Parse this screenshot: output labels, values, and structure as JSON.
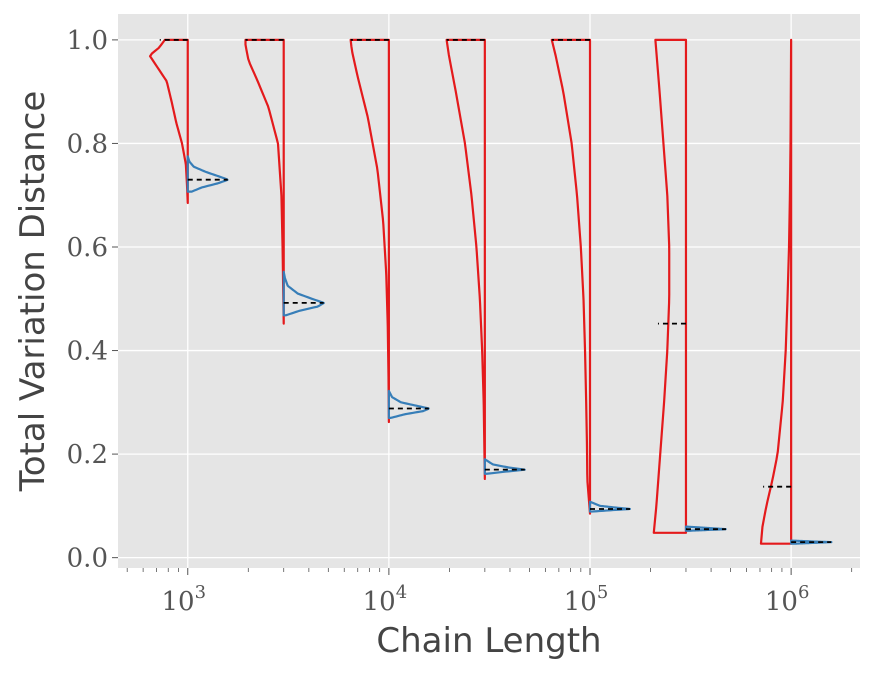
{
  "chart_data": {
    "type": "violin",
    "xlabel": "Chain Length",
    "ylabel": "Total Variation Distance",
    "xscale": "log",
    "xlim": [
      450,
      2200000
    ],
    "ylim": [
      -0.02,
      1.05
    ],
    "grid": true,
    "legend": "none",
    "x_ticks": [
      {
        "value": 1000,
        "base": "10",
        "exp": "3"
      },
      {
        "value": 10000,
        "base": "10",
        "exp": "4"
      },
      {
        "value": 100000,
        "base": "10",
        "exp": "5"
      },
      {
        "value": 1000000,
        "base": "10",
        "exp": "6"
      }
    ],
    "y_ticks": [
      {
        "value": 0.0,
        "label": "0.0"
      },
      {
        "value": 0.2,
        "label": "0.2"
      },
      {
        "value": 0.4,
        "label": "0.4"
      },
      {
        "value": 0.6,
        "label": "0.6"
      },
      {
        "value": 0.8,
        "label": "0.8"
      },
      {
        "value": 1.0,
        "label": "1.0"
      }
    ],
    "colors": {
      "plot_bg": "#e5e5e5",
      "grid": "#ffffff",
      "red": "#e41a1c",
      "blue": "#377eb8",
      "median": "#000000"
    },
    "series": [
      {
        "color": "red",
        "side": "left",
        "groups": [
          {
            "x": 1000,
            "min": 0.685,
            "max": 1.0,
            "median": 1.0,
            "max_halfwidth_decades": 0.19,
            "profile": [
              [
                0.685,
                0.0
              ],
              [
                0.72,
                0.02
              ],
              [
                0.76,
                0.05
              ],
              [
                0.8,
                0.15
              ],
              [
                0.84,
                0.3
              ],
              [
                0.88,
                0.42
              ],
              [
                0.92,
                0.55
              ],
              [
                0.95,
                0.82
              ],
              [
                0.97,
                1.0
              ],
              [
                0.985,
                0.75
              ],
              [
                1.0,
                0.6
              ]
            ]
          },
          {
            "x": 3000,
            "min": 0.452,
            "max": 1.0,
            "median": 1.0,
            "max_halfwidth_decades": 0.19,
            "profile": [
              [
                0.452,
                0.0
              ],
              [
                0.5,
                0.01
              ],
              [
                0.6,
                0.03
              ],
              [
                0.7,
                0.06
              ],
              [
                0.8,
                0.15
              ],
              [
                0.87,
                0.4
              ],
              [
                0.92,
                0.68
              ],
              [
                0.96,
                0.92
              ],
              [
                0.99,
                1.0
              ],
              [
                1.0,
                1.0
              ]
            ]
          },
          {
            "x": 10000,
            "min": 0.262,
            "max": 1.0,
            "median": 1.0,
            "max_halfwidth_decades": 0.19,
            "profile": [
              [
                0.262,
                0.0
              ],
              [
                0.35,
                0.01
              ],
              [
                0.45,
                0.03
              ],
              [
                0.55,
                0.07
              ],
              [
                0.65,
                0.15
              ],
              [
                0.75,
                0.3
              ],
              [
                0.85,
                0.55
              ],
              [
                0.93,
                0.82
              ],
              [
                0.98,
                0.97
              ],
              [
                1.0,
                1.0
              ]
            ]
          },
          {
            "x": 30000,
            "min": 0.152,
            "max": 1.0,
            "median": 1.0,
            "max_halfwidth_decades": 0.19,
            "profile": [
              [
                0.152,
                0.0
              ],
              [
                0.2,
                0.01
              ],
              [
                0.3,
                0.03
              ],
              [
                0.4,
                0.07
              ],
              [
                0.5,
                0.13
              ],
              [
                0.6,
                0.22
              ],
              [
                0.7,
                0.35
              ],
              [
                0.8,
                0.52
              ],
              [
                0.9,
                0.76
              ],
              [
                0.97,
                0.94
              ],
              [
                1.0,
                1.0
              ]
            ]
          },
          {
            "x": 100000,
            "min": 0.085,
            "max": 1.0,
            "median": 1.0,
            "max_halfwidth_decades": 0.19,
            "profile": [
              [
                0.085,
                0.0
              ],
              [
                0.15,
                0.07
              ],
              [
                0.22,
                0.08
              ],
              [
                0.3,
                0.1
              ],
              [
                0.4,
                0.13
              ],
              [
                0.5,
                0.17
              ],
              [
                0.6,
                0.24
              ],
              [
                0.7,
                0.34
              ],
              [
                0.8,
                0.48
              ],
              [
                0.9,
                0.7
              ],
              [
                0.97,
                0.9
              ],
              [
                1.0,
                1.0
              ]
            ]
          },
          {
            "x": 300000,
            "min": 0.048,
            "max": 1.0,
            "median": 0.452,
            "max_halfwidth_decades": 0.16,
            "profile": [
              [
                0.048,
                1.0
              ],
              [
                0.1,
                0.92
              ],
              [
                0.2,
                0.8
              ],
              [
                0.3,
                0.68
              ],
              [
                0.4,
                0.58
              ],
              [
                0.5,
                0.52
              ],
              [
                0.6,
                0.52
              ],
              [
                0.7,
                0.58
              ],
              [
                0.8,
                0.7
              ],
              [
                0.9,
                0.82
              ],
              [
                1.0,
                0.95
              ]
            ]
          },
          {
            "x": 1000000,
            "min": 0.027,
            "max": 1.0,
            "median": 0.137,
            "max_halfwidth_decades": 0.15,
            "profile": [
              [
                0.027,
                1.0
              ],
              [
                0.06,
                0.95
              ],
              [
                0.1,
                0.82
              ],
              [
                0.15,
                0.62
              ],
              [
                0.2,
                0.45
              ],
              [
                0.3,
                0.28
              ],
              [
                0.4,
                0.18
              ],
              [
                0.5,
                0.12
              ],
              [
                0.6,
                0.07
              ],
              [
                0.7,
                0.04
              ],
              [
                0.8,
                0.02
              ],
              [
                0.9,
                0.01
              ],
              [
                1.0,
                0.0
              ]
            ]
          }
        ]
      },
      {
        "color": "blue",
        "side": "right",
        "groups": [
          {
            "x": 1000,
            "min": 0.707,
            "max": 0.775,
            "median": 0.73,
            "max_halfwidth_decades": 0.2,
            "profile": [
              [
                0.707,
                0.1
              ],
              [
                0.715,
                0.35
              ],
              [
                0.723,
                0.75
              ],
              [
                0.73,
                1.0
              ],
              [
                0.737,
                0.75
              ],
              [
                0.745,
                0.45
              ],
              [
                0.755,
                0.15
              ],
              [
                0.765,
                0.04
              ],
              [
                0.775,
                0.0
              ]
            ]
          },
          {
            "x": 3000,
            "min": 0.468,
            "max": 0.552,
            "median": 0.492,
            "max_halfwidth_decades": 0.2,
            "profile": [
              [
                0.468,
                0.05
              ],
              [
                0.477,
                0.4
              ],
              [
                0.485,
                0.85
              ],
              [
                0.492,
                1.0
              ],
              [
                0.5,
                0.7
              ],
              [
                0.51,
                0.35
              ],
              [
                0.525,
                0.1
              ],
              [
                0.54,
                0.03
              ],
              [
                0.552,
                0.0
              ]
            ]
          },
          {
            "x": 10000,
            "min": 0.27,
            "max": 0.322,
            "median": 0.288,
            "max_halfwidth_decades": 0.2,
            "profile": [
              [
                0.27,
                0.05
              ],
              [
                0.277,
                0.4
              ],
              [
                0.283,
                0.85
              ],
              [
                0.288,
                1.0
              ],
              [
                0.294,
                0.65
              ],
              [
                0.3,
                0.3
              ],
              [
                0.31,
                0.08
              ],
              [
                0.322,
                0.0
              ]
            ]
          },
          {
            "x": 30000,
            "min": 0.162,
            "max": 0.19,
            "median": 0.17,
            "max_halfwidth_decades": 0.2,
            "profile": [
              [
                0.162,
                0.05
              ],
              [
                0.166,
                0.5
              ],
              [
                0.17,
                1.0
              ],
              [
                0.174,
                0.6
              ],
              [
                0.18,
                0.2
              ],
              [
                0.19,
                0.0
              ]
            ]
          },
          {
            "x": 100000,
            "min": 0.089,
            "max": 0.108,
            "median": 0.094,
            "max_halfwidth_decades": 0.2,
            "profile": [
              [
                0.089,
                0.05
              ],
              [
                0.092,
                0.6
              ],
              [
                0.094,
                1.0
              ],
              [
                0.097,
                0.6
              ],
              [
                0.1,
                0.25
              ],
              [
                0.108,
                0.0
              ]
            ]
          },
          {
            "x": 300000,
            "min": 0.052,
            "max": 0.06,
            "median": 0.055,
            "max_halfwidth_decades": 0.2,
            "profile": [
              [
                0.052,
                0.1
              ],
              [
                0.054,
                0.7
              ],
              [
                0.055,
                1.0
              ],
              [
                0.057,
                0.6
              ],
              [
                0.06,
                0.0
              ]
            ]
          },
          {
            "x": 1000000,
            "min": 0.027,
            "max": 0.033,
            "median": 0.03,
            "max_halfwidth_decades": 0.2,
            "profile": [
              [
                0.027,
                0.1
              ],
              [
                0.029,
                0.7
              ],
              [
                0.03,
                1.0
              ],
              [
                0.031,
                0.6
              ],
              [
                0.033,
                0.0
              ]
            ]
          }
        ]
      }
    ]
  }
}
